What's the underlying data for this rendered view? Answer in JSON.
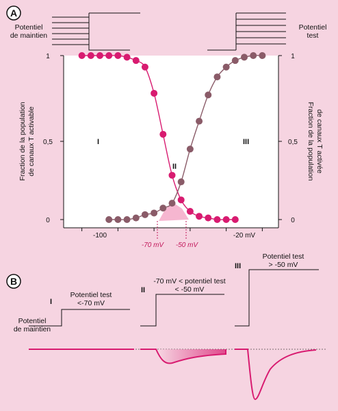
{
  "panel_a": {
    "badge": "A",
    "holding_label": [
      "Potentiel",
      "de maintien"
    ],
    "test_label": [
      "Potentiel",
      "test"
    ],
    "y_left_label": [
      "Fraction de la population",
      "de canaux T activable"
    ],
    "y_right_label": [
      "Fraction de la population",
      "de canaux T activée"
    ],
    "y_ticks": [
      "1",
      "0,5",
      "0"
    ],
    "x_ticks": [
      "-100",
      "-20 mV"
    ],
    "regions": [
      "I",
      "II",
      "III"
    ],
    "markers": [
      "-70 mV",
      "-50 mV"
    ]
  },
  "panel_b": {
    "badge": "B",
    "step_1": {
      "roman": "I",
      "test_label": [
        "Potentiel test",
        "<-70 mV"
      ],
      "holding_label": [
        "Potentiel",
        "de maintien"
      ]
    },
    "step_2": {
      "roman": "II",
      "test_label": [
        "-70 mV < potentiel test",
        "< -50 mV"
      ]
    },
    "step_3": {
      "roman": "III",
      "test_label": [
        "Potentiel test",
        "> -50 mV"
      ]
    }
  },
  "colors": {
    "background": "#f6d4e1",
    "inactivation": "#d81b70",
    "activation": "#8a5b68",
    "plot_bg": "#ffffff"
  },
  "chart_data": {
    "type": "scatter",
    "xlabel": "mV",
    "ylabel": "Fraction de la population de canaux T",
    "xlim": [
      -120,
      -10
    ],
    "ylim": [
      0,
      1
    ],
    "series": [
      {
        "values": [
          [
            -110,
            1.0
          ],
          [
            -105,
            1.0
          ],
          [
            -100,
            1.0
          ],
          [
            -95,
            1.0
          ],
          [
            -90,
            1.0
          ],
          [
            -85,
            0.99
          ],
          [
            -80,
            0.97
          ],
          [
            -75,
            0.93
          ],
          [
            -70,
            0.77
          ],
          [
            -65,
            0.52
          ],
          [
            -60,
            0.27
          ],
          [
            -55,
            0.12
          ],
          [
            -50,
            0.05
          ],
          [
            -45,
            0.02
          ],
          [
            -40,
            0.01
          ],
          [
            -35,
            0.0
          ],
          [
            -30,
            0.0
          ],
          [
            -25,
            0.0
          ]
        ]
      },
      {
        "values": [
          [
            -95,
            0.0
          ],
          [
            -90,
            0.0
          ],
          [
            -85,
            0.0
          ],
          [
            -80,
            0.01
          ],
          [
            -75,
            0.03
          ],
          [
            -70,
            0.04
          ],
          [
            -65,
            0.07
          ],
          [
            -60,
            0.1
          ],
          [
            -55,
            0.23
          ],
          [
            -50,
            0.43
          ],
          [
            -45,
            0.6
          ],
          [
            -40,
            0.76
          ],
          [
            -35,
            0.87
          ],
          [
            -30,
            0.93
          ],
          [
            -25,
            0.97
          ],
          [
            -20,
            0.99
          ],
          [
            -15,
            1.0
          ],
          [
            -10,
            1.0
          ]
        ]
      }
    ]
  }
}
